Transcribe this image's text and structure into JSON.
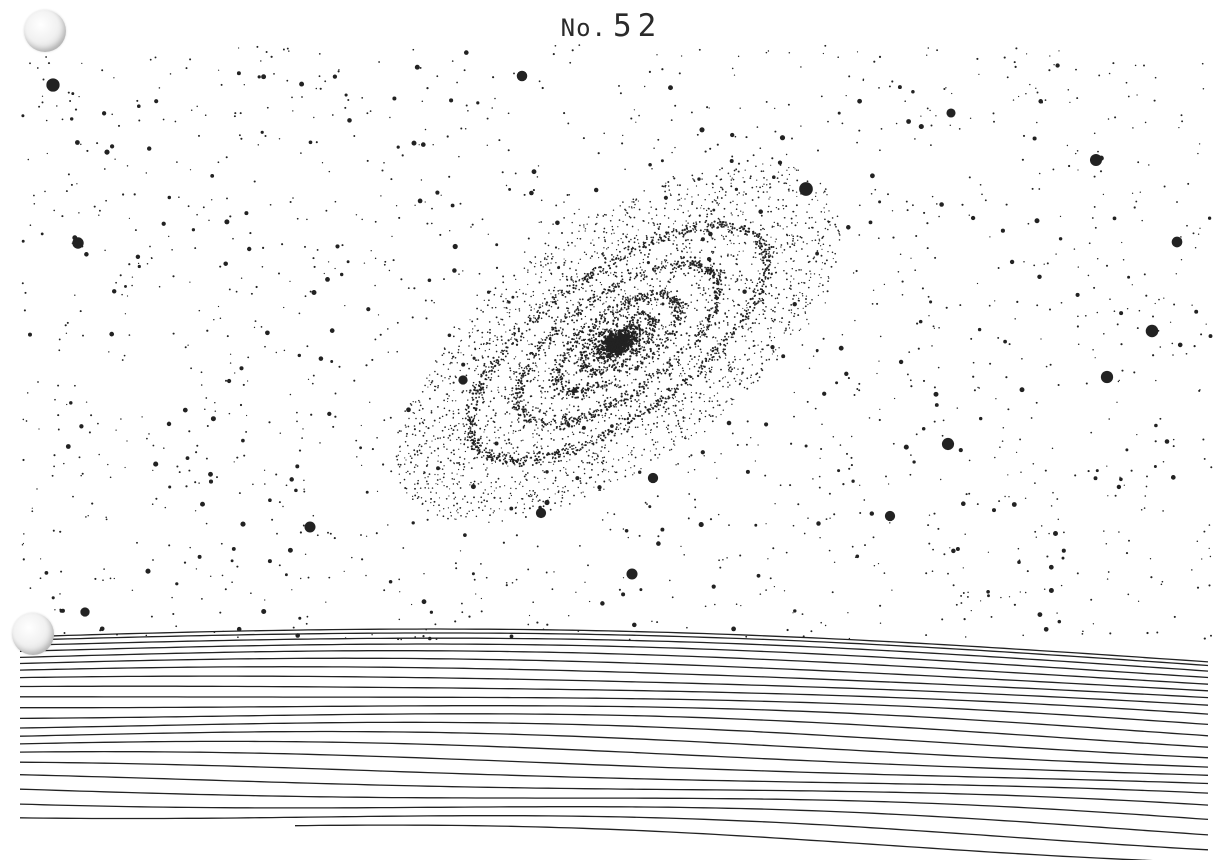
{
  "plate": {
    "number_prefix": "No.",
    "number_value": "52"
  },
  "illustration": {
    "subject": "spiral-galaxy-over-horizon",
    "colors": {
      "paper": "#ffffff",
      "ink": "#222222"
    }
  }
}
